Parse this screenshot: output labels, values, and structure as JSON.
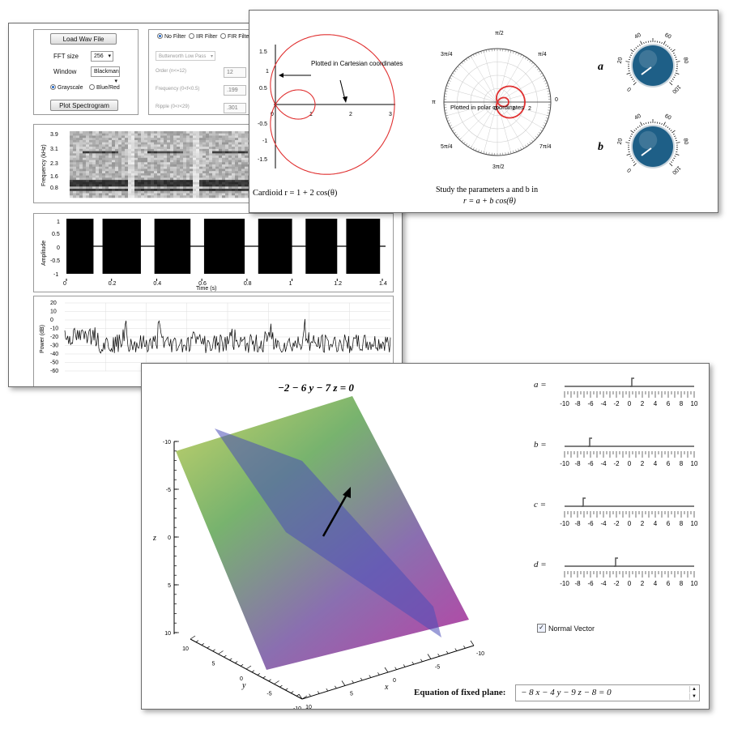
{
  "spectrogram_app": {
    "load_button": "Load Wav File",
    "fft_label": "FFT size",
    "fft_value": "256",
    "window_label": "Window",
    "window_value": "Blackman",
    "grayscale": "Grayscale",
    "bluered": "Blue/Red",
    "plot_button": "Plot Spectrogram",
    "filters": [
      "No Filter",
      "IIR Filter",
      "FIR Filter"
    ],
    "filter_type": "Butterworth Low Pass",
    "order_label": "Order (n<=12)",
    "order_value": "12",
    "frequency_label": "Frequency (0<f<0.5)",
    "frequency_value": ".199",
    "ripple_label": "Ripple (0<r<29)",
    "ripple_value": ".301",
    "spec_ylabel": "Frequency (kHz)",
    "spec_ticks": [
      "3.9",
      "3.1",
      "2.3",
      "1.6",
      "0.8"
    ],
    "amp_ylabel": "Amplitude",
    "amp_yticks": [
      "1",
      "0.5",
      "0",
      "-0.5",
      "-1"
    ],
    "amp_xticks": [
      "0",
      "0.2",
      "0.4",
      "0.6",
      "0.8",
      "1",
      "1.2",
      "1.4"
    ],
    "amp_xlabel": "Time (s)",
    "power_ylabel": "Power (dB)",
    "power_yticks": [
      "20",
      "10",
      "0",
      "-10",
      "-20",
      "-30",
      "-40",
      "-50",
      "-60"
    ]
  },
  "polar_app": {
    "cart_yticks": [
      "1.5",
      "1",
      "0.5",
      "-0.5",
      "-1",
      "-1.5"
    ],
    "cart_xticks": [
      "0",
      "1",
      "2",
      "3"
    ],
    "cart_annotation": "Plotted in Cartesian coordinates",
    "cart_caption": "Cardioid r = 1 + 2 cos(θ)",
    "polar_annotation": "Plotted in polar coordinates",
    "polar_angle_labels": [
      "π/2",
      "π/4",
      "0",
      "7π/4",
      "3π/2",
      "5π/4",
      "π",
      "3π/4"
    ],
    "polar_radial_ticks": [
      "0",
      "1",
      "2"
    ],
    "polar_caption_line1": "Study the parameters a and b in",
    "polar_caption_line2": "r = a + b cos(θ)",
    "knob_a_label": "a",
    "knob_b_label": "b",
    "knob_ticks": [
      "0",
      "20",
      "40",
      "60",
      "80",
      "100"
    ],
    "knob_color": "#1e5f87"
  },
  "plane_app": {
    "title": "−2 − 6 y − 7 z = 0",
    "z_ticks": [
      "-10",
      "-5",
      "0",
      "5",
      "10"
    ],
    "y_ticks": [
      "10",
      "5",
      "0",
      "-5",
      "-10"
    ],
    "x_ticks": [
      "-10",
      "-5",
      "0",
      "5",
      "10"
    ],
    "z_label": "z",
    "y_label": "y",
    "x_label": "x",
    "sliders": [
      {
        "name": "a",
        "label": "a =",
        "value": 0.5
      },
      {
        "name": "b",
        "label": "b =",
        "value": -6
      },
      {
        "name": "c",
        "label": "c =",
        "value": -7
      },
      {
        "name": "d",
        "label": "d =",
        "value": -2
      }
    ],
    "slider_ticks": [
      "-10",
      "-8",
      "-6",
      "-4",
      "-2",
      "0",
      "2",
      "4",
      "6",
      "8",
      "10"
    ],
    "checkbox_label": "Normal Vector",
    "checkbox_checked": true,
    "equation_label": "Equation of fixed plane:",
    "equation_value": "− 8 x − 4 y − 9 z − 8 = 0"
  }
}
